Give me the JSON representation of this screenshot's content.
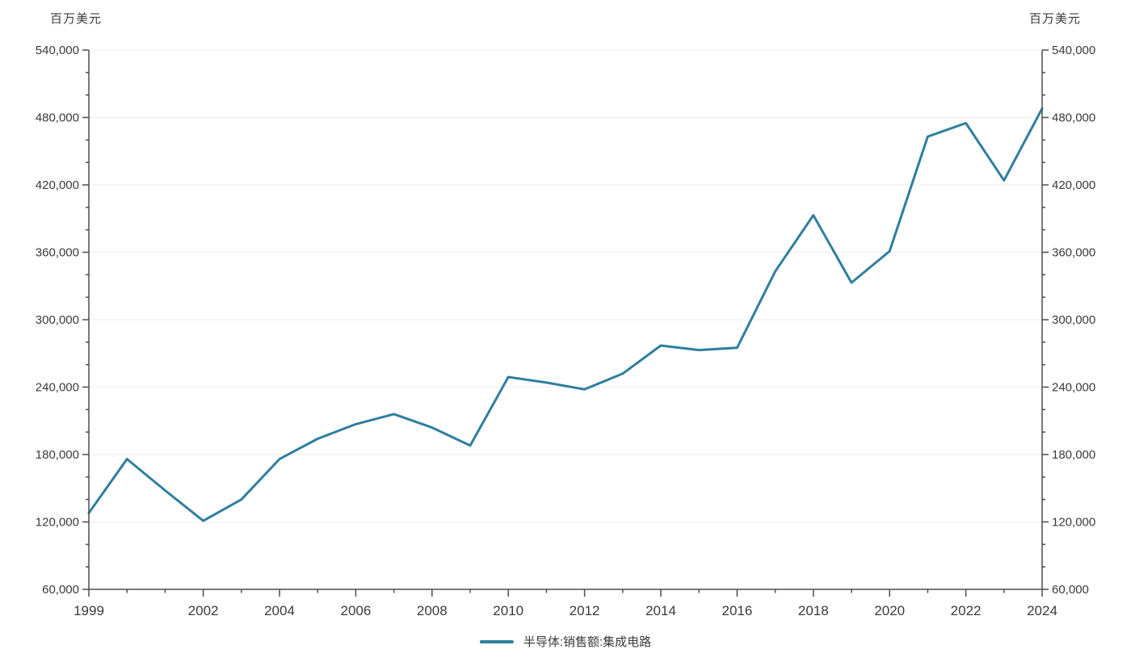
{
  "axis_units": {
    "left": "百万美元",
    "right": "百万美元"
  },
  "legend": [
    {
      "label": "半导体:销售额:集成电路",
      "color": "#2e7f9d"
    }
  ],
  "chart_data": {
    "type": "line",
    "title": "",
    "xlabel": "",
    "ylabel": "百万美元",
    "x": [
      1999,
      2000,
      2001,
      2002,
      2003,
      2004,
      2005,
      2006,
      2007,
      2008,
      2009,
      2010,
      2011,
      2012,
      2013,
      2014,
      2015,
      2016,
      2017,
      2018,
      2019,
      2020,
      2021,
      2022,
      2023,
      2024
    ],
    "series": [
      {
        "name": "半导体:销售额:集成电路",
        "color": "#2e7f9d",
        "values": [
          128000,
          176000,
          148000,
          121000,
          140000,
          176000,
          194000,
          207000,
          216000,
          204000,
          188000,
          249000,
          244000,
          238000,
          252000,
          277000,
          273000,
          275000,
          343000,
          393000,
          333000,
          361000,
          463000,
          475000,
          424000,
          488000
        ]
      }
    ],
    "ylim": [
      60000,
      540000
    ],
    "y_tick_step": 60000,
    "y_minor_step": 20000,
    "y_tick_labels": [
      "60,000",
      "120,000",
      "180,000",
      "240,000",
      "300,000",
      "360,000",
      "420,000",
      "480,000",
      "540,000"
    ],
    "x_tick_labels": [
      1999,
      2002,
      2004,
      2006,
      2008,
      2010,
      2012,
      2014,
      2016,
      2018,
      2020,
      2022,
      2024
    ],
    "grid": true,
    "legend_position": "bottom",
    "dual_y_axis": true,
    "colors": {
      "line": "#2e7f9d",
      "axis": "#4d4d4d",
      "grid": "#ededed",
      "text": "#3a3a3a"
    }
  }
}
